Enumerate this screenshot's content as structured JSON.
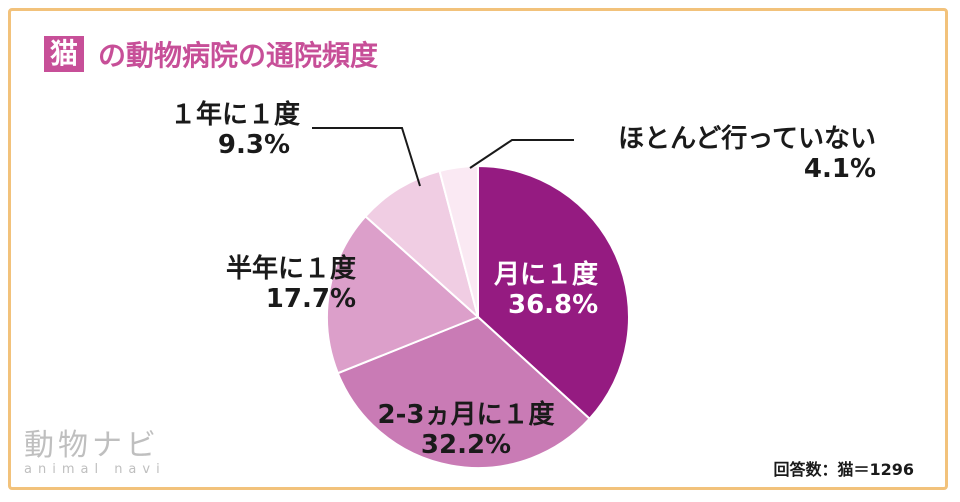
{
  "title": {
    "badge": "猫",
    "rest": "の動物病院の通院頻度"
  },
  "chart_data": {
    "type": "pie",
    "categories": [
      "月に１度",
      "2-3ヵ月に１度",
      "半年に１度",
      "１年に１度",
      "ほとんど行っていない"
    ],
    "values": [
      36.8,
      32.2,
      17.7,
      9.3,
      4.1
    ],
    "value_labels": [
      "36.8%",
      "32.2%",
      "17.7%",
      "9.3%",
      "4.1%"
    ],
    "colors": [
      "#951b81",
      "#c97bb5",
      "#dc9fca",
      "#f0cde3",
      "#fae9f3"
    ],
    "start": "12 o'clock",
    "direction": "clockwise"
  },
  "note": "回答数：猫＝1296",
  "logo": {
    "jp": "動物ナビ",
    "en": "animal navi"
  }
}
